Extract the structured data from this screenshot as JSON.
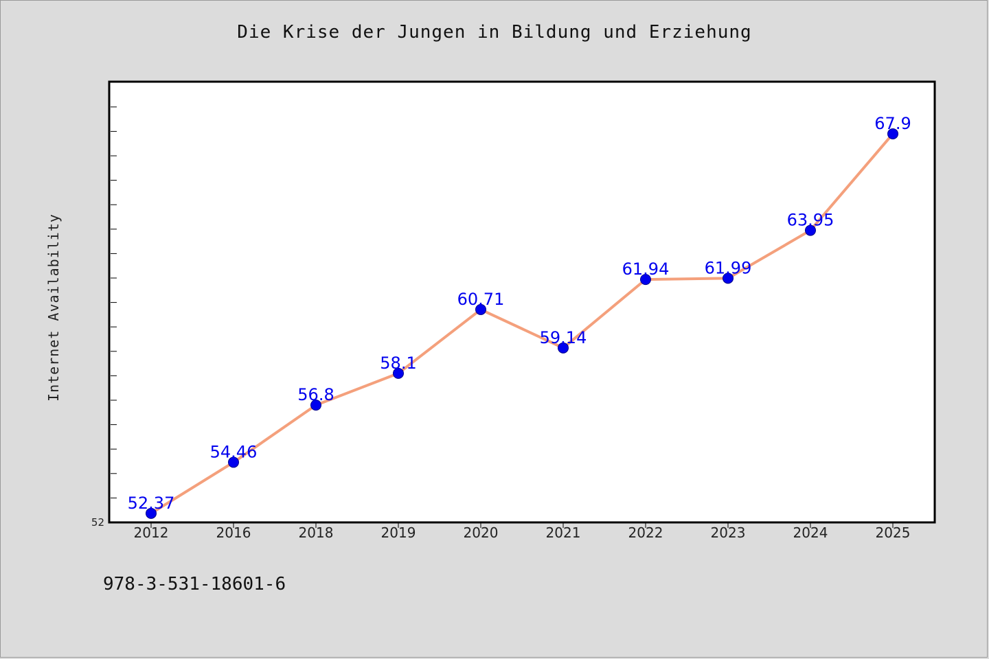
{
  "title": "Die Krise der Jungen in Bildung und Erziehung",
  "footnote": "978-3-531-18601-6",
  "colors": {
    "background": "#dcdcdc",
    "plot_background": "#ffffff",
    "line": "#f4a07c",
    "marker": "#0000ee",
    "data_label": "#0000ee"
  },
  "chart_data": {
    "type": "line",
    "title": "Die Krise der Jungen in Bildung und Erziehung",
    "xlabel": "",
    "ylabel": "Internet Availability",
    "categories": [
      "2012",
      "2016",
      "2018",
      "2019",
      "2020",
      "2021",
      "2022",
      "2023",
      "2024",
      "2025"
    ],
    "values": [
      52.37,
      54.46,
      56.8,
      58.1,
      60.71,
      59.14,
      61.94,
      61.99,
      63.95,
      67.9
    ],
    "data_labels": [
      "52.37",
      "54.46",
      "56.8",
      "58.1",
      "60.71",
      "59.14",
      "61.94",
      "61.99",
      "63.95",
      "67.9"
    ],
    "y_tick_labels": [
      "52"
    ],
    "ylim": [
      52,
      70
    ],
    "grid": false,
    "legend": "none"
  }
}
